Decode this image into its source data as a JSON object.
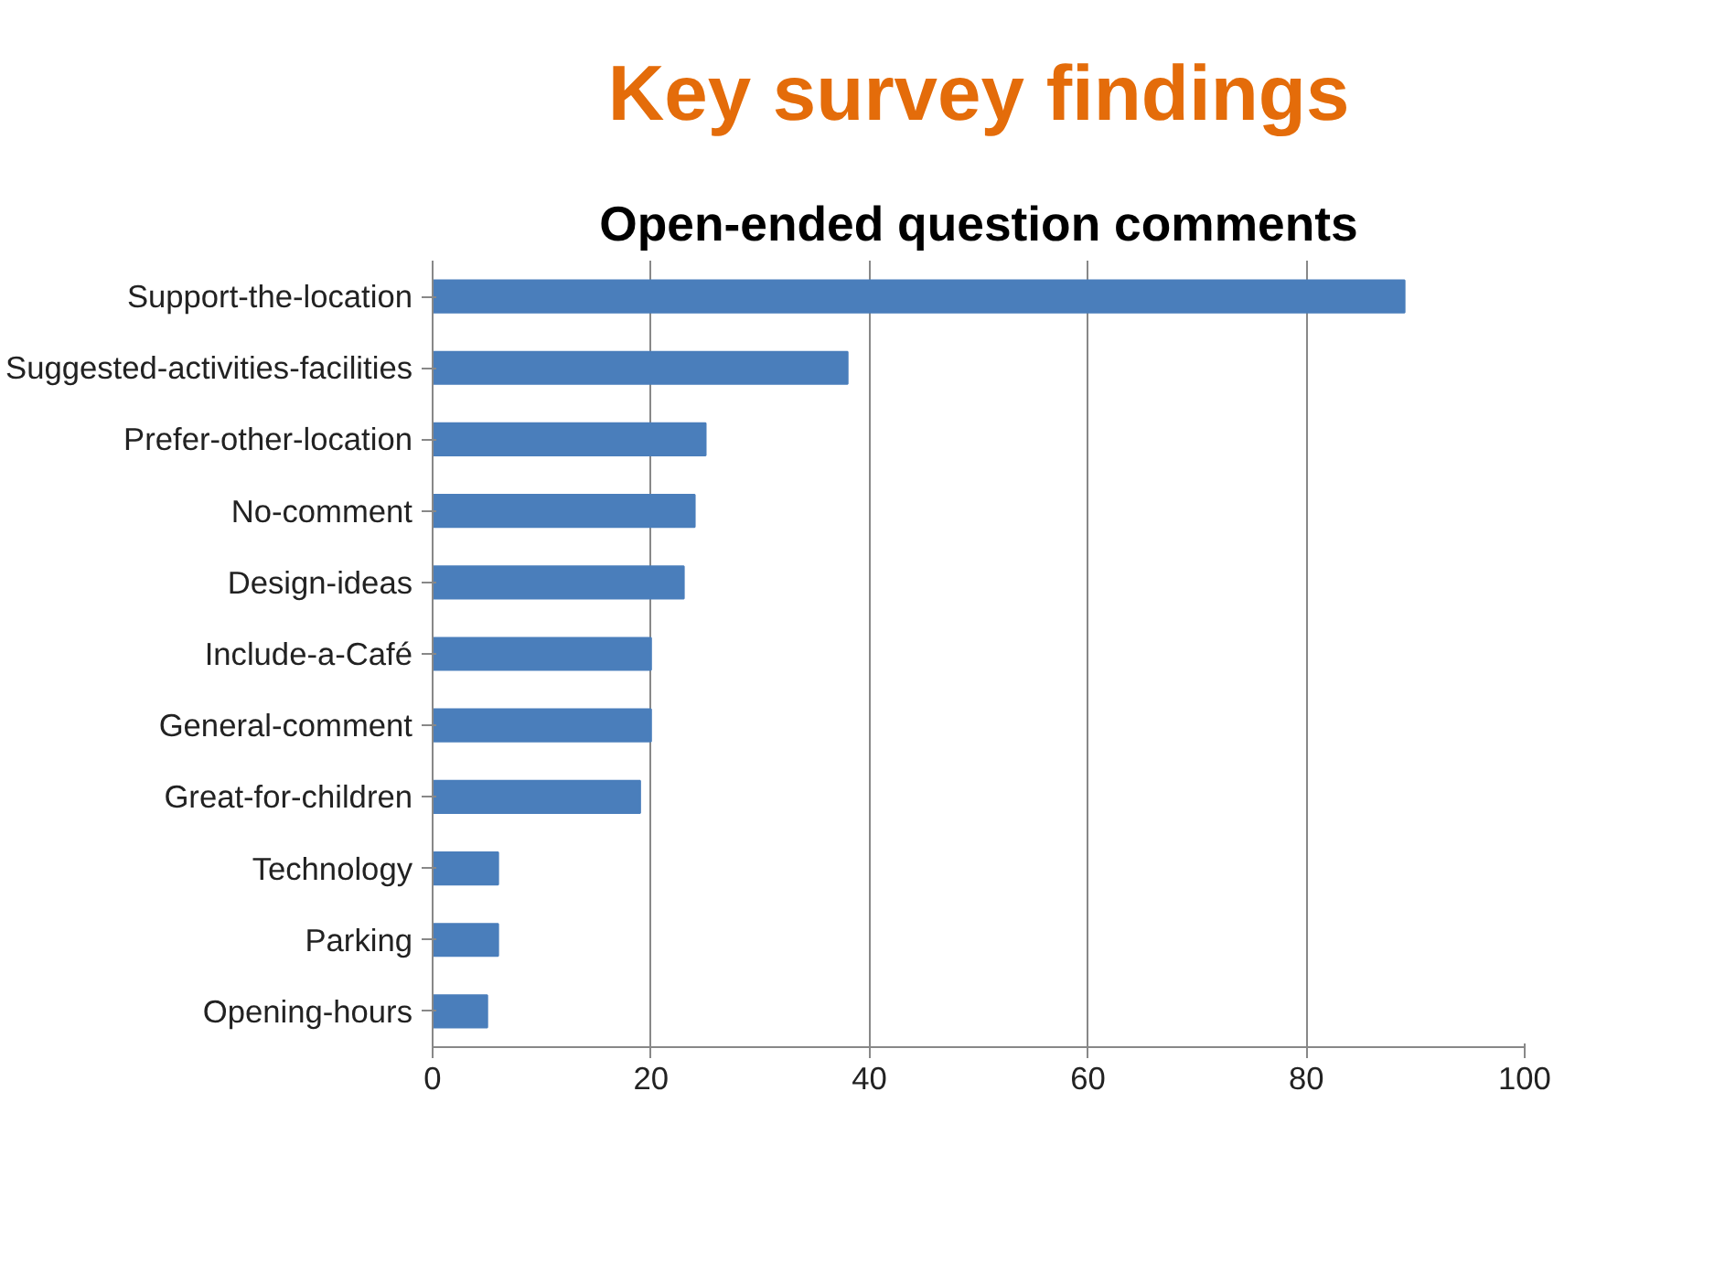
{
  "chart_data": {
    "type": "bar",
    "orientation": "horizontal",
    "title": "Key survey findings",
    "subtitle": "Open-ended question comments",
    "categories": [
      "Support-the-location",
      "Suggested-activities-facilities",
      "Prefer-other-location",
      "No-comment",
      "Design-ideas",
      "Include-a-Café",
      "General-comment",
      "Great-for-children",
      "Technology",
      "Parking",
      "Opening-hours"
    ],
    "values": [
      89,
      38,
      25,
      24,
      23,
      20,
      20,
      19,
      6,
      6,
      5
    ],
    "color": "#4a7ebb",
    "xlim": [
      0,
      100
    ],
    "xticks": [
      0,
      20,
      40,
      60,
      80,
      100
    ],
    "grid": "x"
  }
}
